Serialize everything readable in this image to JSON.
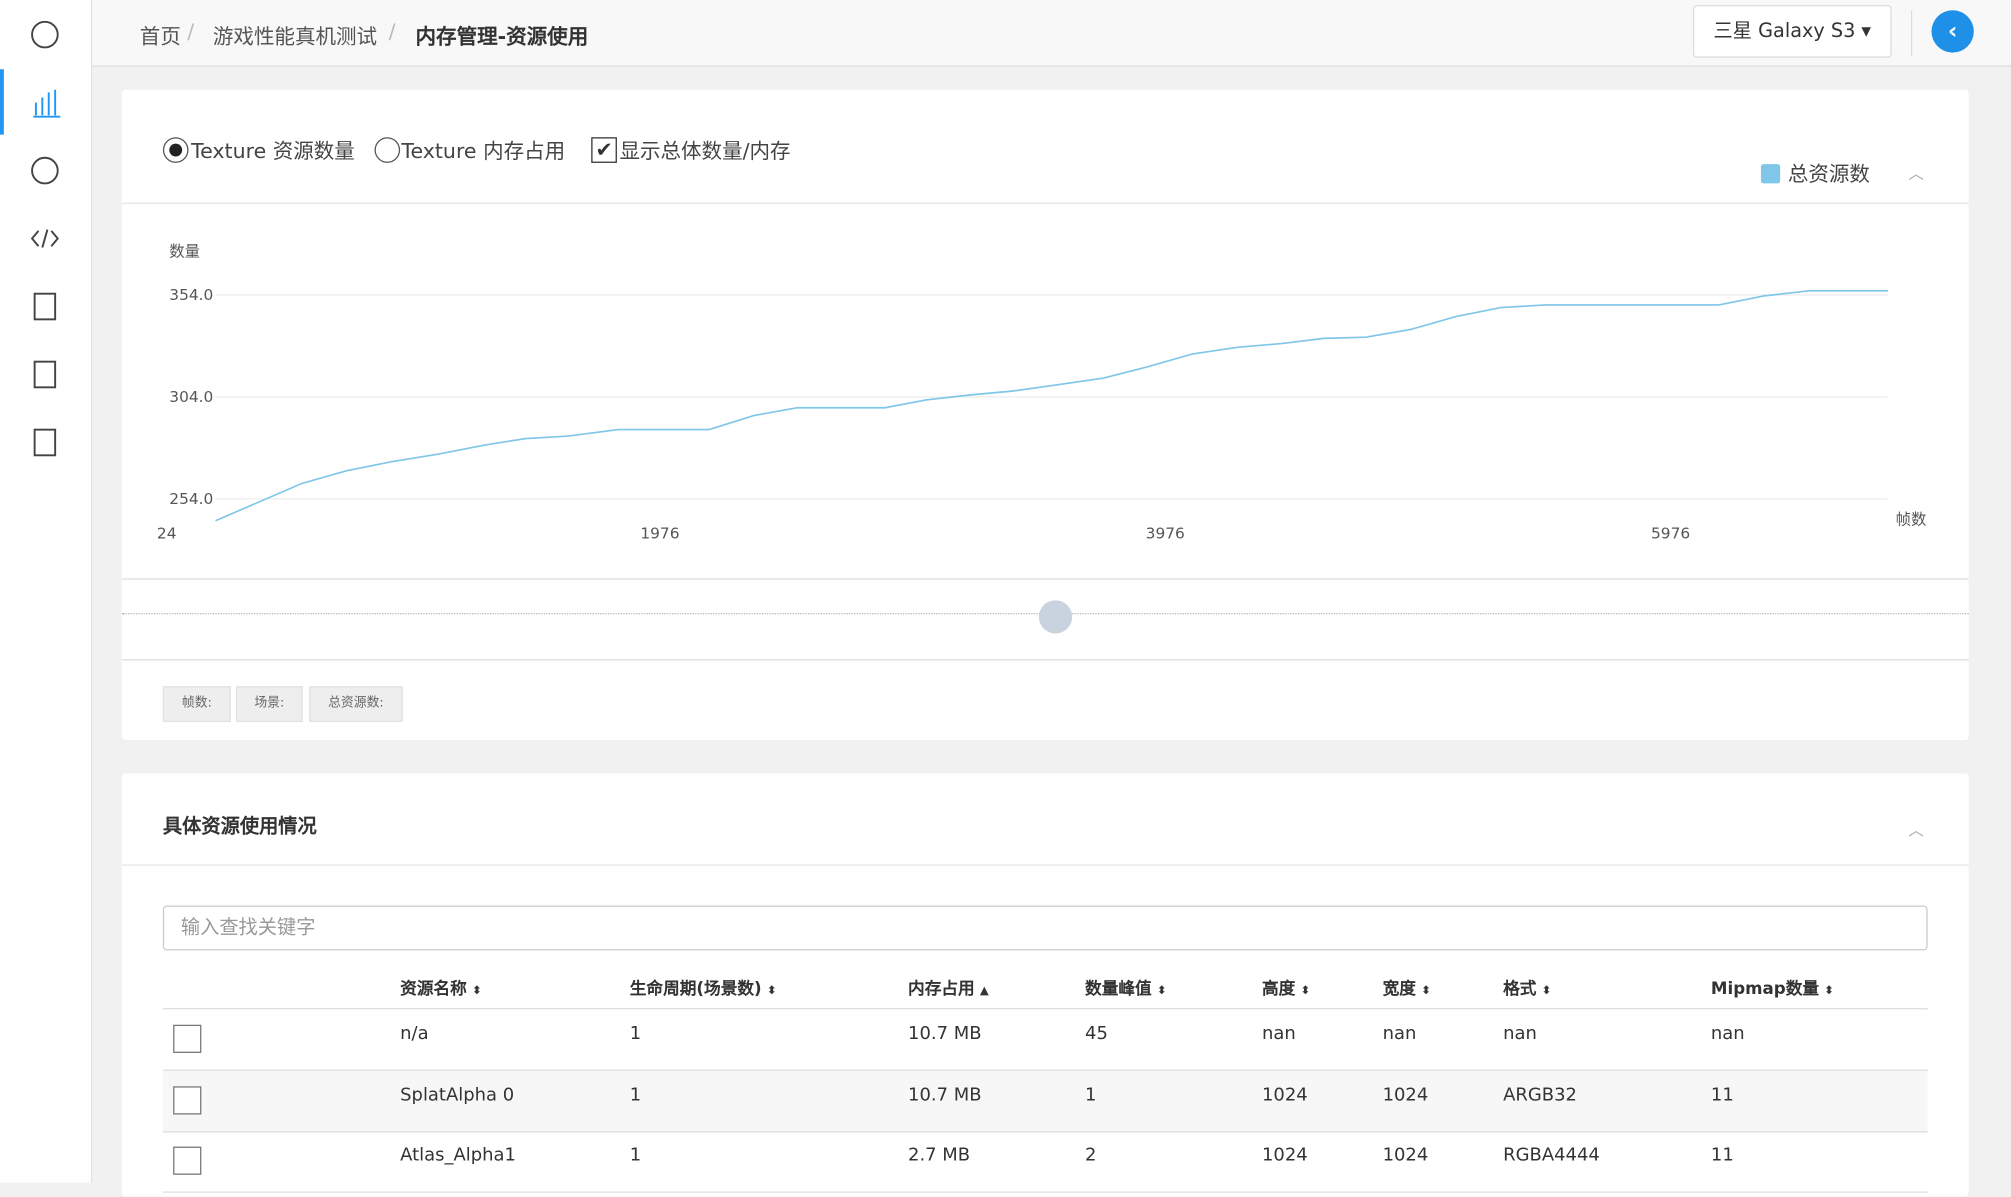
{
  "breadcrumb": {
    "items": [
      "首页",
      "游戏性能真机测试",
      "内存管理-资源使用"
    ],
    "separator": "/"
  },
  "device": "三星 Galaxy S3",
  "controls": {
    "radio_count": "Texture 资源数量",
    "radio_memory": "Texture 内存占用",
    "checkbox_total": "显示总体数量/内存"
  },
  "chart_data": {
    "type": "line",
    "y_label": "数量",
    "x_label": "帧数",
    "x": [
      217,
      557,
      735,
      912,
      1100,
      1283,
      1445,
      1613,
      1811,
      2171,
      2349,
      2521,
      2867,
      3029,
      3207,
      3374,
      3552,
      3730,
      3907,
      4085,
      4262,
      4440,
      4603,
      4770,
      4948,
      5126,
      5304,
      5481,
      6167,
      6345,
      6523,
      6836
    ],
    "series": [
      {
        "name": "总资源数",
        "color": "#7fc6e8",
        "values": [
          243.3,
          261.5,
          267.8,
          272.2,
          276,
          280.4,
          283.6,
          284.8,
          288,
          288,
          294.9,
          298.7,
          298.7,
          302.5,
          305,
          306.9,
          310,
          313.2,
          318.8,
          325.1,
          328.3,
          330.2,
          332.7,
          333.3,
          337.1,
          343.4,
          347.8,
          349.1,
          349.1,
          353.5,
          356,
          356
        ]
      }
    ],
    "xlim": [
      24,
      6836
    ],
    "xticks": [
      24,
      1976,
      3976,
      5976
    ],
    "ylim": [
      243,
      358
    ],
    "yticks": [
      {
        "value": 254,
        "label": "254.0"
      },
      {
        "value": 304,
        "label": "304.0"
      },
      {
        "value": 354,
        "label": "354.0"
      }
    ],
    "grid": true,
    "legend": "top-right"
  },
  "tooltip": [
    "帧数:",
    "场景:",
    "总资源数:"
  ],
  "section_title": "具体资源使用情况",
  "search_placeholder": "输入查找关键字",
  "table": {
    "headers": [
      "资源名称",
      "生命周期(场景数)",
      "内存占用",
      "数量峰值",
      "高度",
      "宽度",
      "格式",
      "Mipmap数量"
    ],
    "rows": [
      [
        "n/a",
        "1",
        "10.7 MB",
        "45",
        "nan",
        "nan",
        "nan",
        "nan"
      ],
      [
        "SplatAlpha 0",
        "1",
        "10.7 MB",
        "1",
        "1024",
        "1024",
        "ARGB32",
        "11"
      ],
      [
        "Atlas_Alpha1",
        "1",
        "2.7 MB",
        "2",
        "1024",
        "1024",
        "RGBA4444",
        "11"
      ]
    ]
  }
}
